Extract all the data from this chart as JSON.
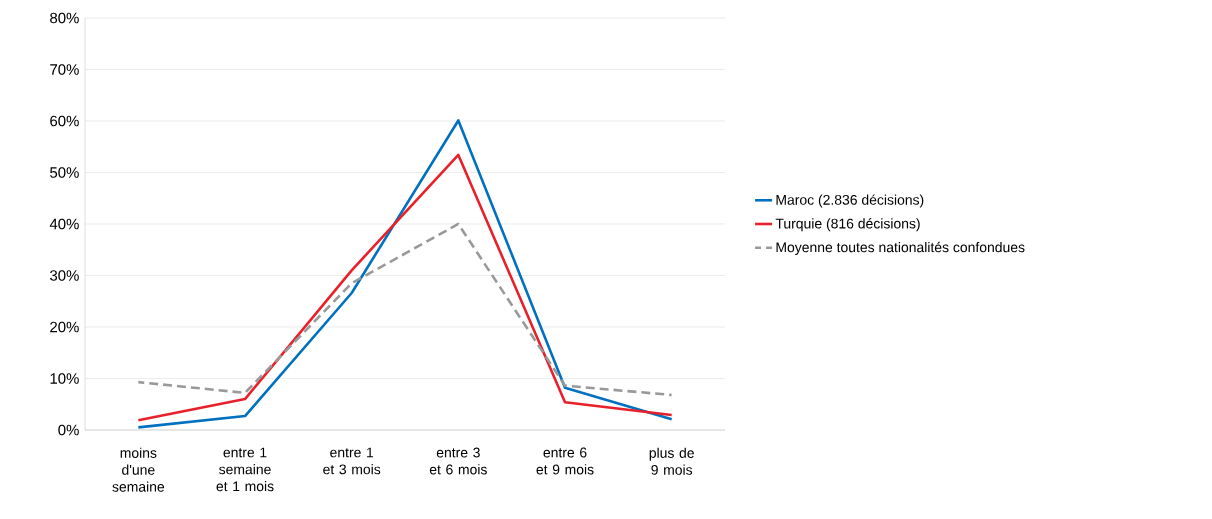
{
  "chart_data": {
    "type": "line",
    "categories": [
      "moins d'une semaine",
      "entre 1 semaine et 1 mois",
      "entre 1 et 3 mois",
      "entre 3 et 6 mois",
      "entre 6 et 9 mois",
      "plus de 9 mois"
    ],
    "series": [
      {
        "name": "Maroc (2.836 décisions)",
        "color": "#0070c0",
        "values": [
          0.5,
          2.7,
          26.6,
          60.1,
          8.2,
          2.1
        ]
      },
      {
        "name": "Turquie (816 décisions)",
        "color": "#e8202a",
        "values": [
          1.9,
          6.0,
          31.0,
          53.4,
          5.4,
          2.9
        ]
      },
      {
        "name": "Moyenne toutes nationalités confondues",
        "color": "#999999",
        "line_style": "dashed",
        "values": [
          9.3,
          7.2,
          28.5,
          40.0,
          8.6,
          6.8
        ]
      }
    ],
    "ylim": [
      0,
      80
    ],
    "yticks": [
      {
        "value": 0,
        "label": "0%"
      },
      {
        "value": 10,
        "label": "10%"
      },
      {
        "value": 20,
        "label": "20%"
      },
      {
        "value": 30,
        "label": "30%"
      },
      {
        "value": 40,
        "label": "40%"
      },
      {
        "value": 50,
        "label": "50%"
      },
      {
        "value": 60,
        "label": "60%"
      },
      {
        "value": 70,
        "label": "70%"
      },
      {
        "value": 80,
        "label": "80%"
      }
    ],
    "grid": "y",
    "legend": "right",
    "marker": "none"
  }
}
